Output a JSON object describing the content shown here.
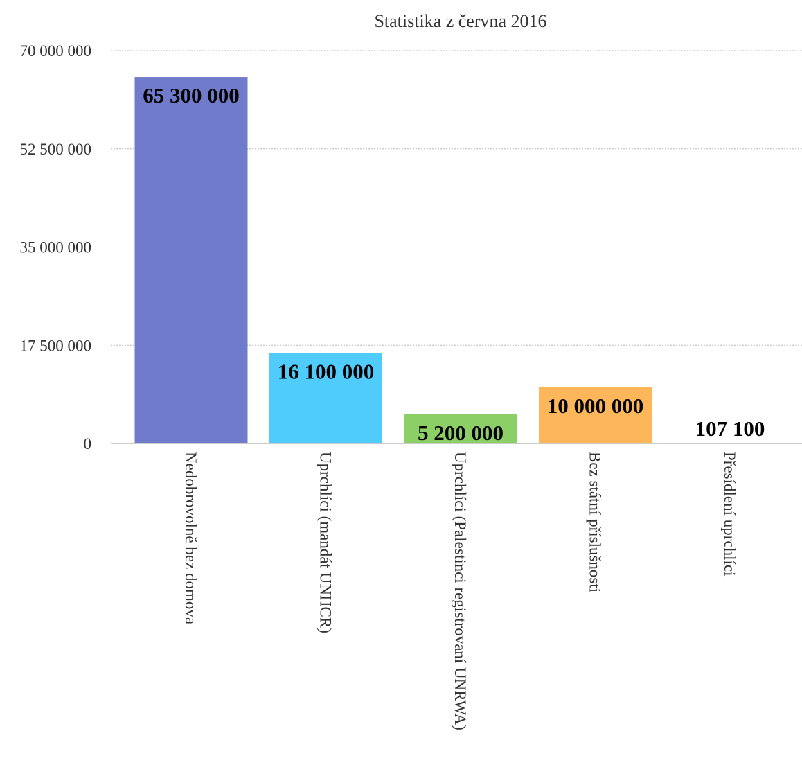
{
  "chart_data": {
    "type": "bar",
    "title": "Statistika z června 2016",
    "categories": [
      "Nedobrovolně bez domova",
      "Uprchlíci (mandát UNHCR)",
      "Uprchlíci (Palestinci registrovaní UNRWA)",
      "Bez státní příslušnosti",
      "Přesídlení uprchlíci"
    ],
    "values": [
      65300000,
      16100000,
      5200000,
      10000000,
      107100
    ],
    "value_labels": [
      "65 300 000",
      "16 100 000",
      "5 200 000",
      "10 000 000",
      "107 100"
    ],
    "colors": [
      "#717bcb",
      "#4fcbfc",
      "#8dcf67",
      "#fdb75a",
      "#d8d8d8"
    ],
    "ylim": [
      0,
      70000000
    ],
    "yticks": [
      0,
      17500000,
      35000000,
      52500000,
      70000000
    ],
    "ytick_labels": [
      "0",
      "17 500 000",
      "35 000 000",
      "52 500 000",
      "70 000 000"
    ],
    "xlabel": "",
    "ylabel": "",
    "grid": true,
    "legend": "none"
  }
}
